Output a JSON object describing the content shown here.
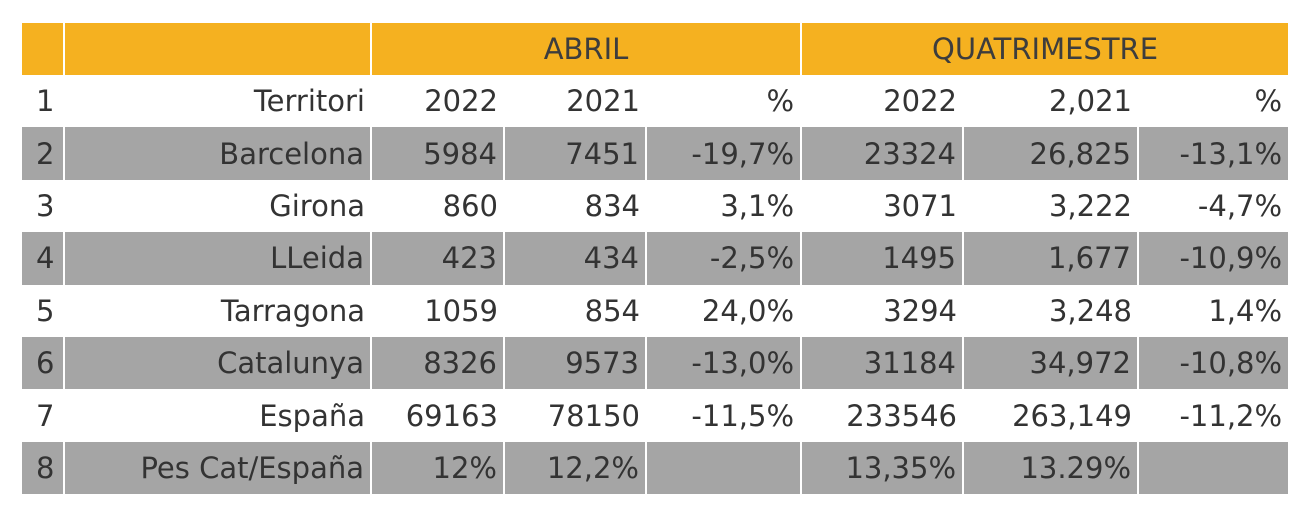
{
  "header": {
    "group_abril": "ABRIL",
    "group_quatrimestre": "QUATRIMESTRE"
  },
  "columns": [
    "Territori",
    "2022",
    "2021",
    "%",
    "2022",
    "2,021",
    "%"
  ],
  "rows": [
    {
      "index": "1",
      "cells": [
        "Territori",
        "2022",
        "2021",
        "%",
        "2022",
        "2,021",
        "%"
      ]
    },
    {
      "index": "2",
      "cells": [
        "Barcelona",
        "5984",
        "7451",
        "-19,7%",
        "23324",
        "26,825",
        "-13,1%"
      ]
    },
    {
      "index": "3",
      "cells": [
        "Girona",
        "860",
        "834",
        "3,1%",
        "3071",
        "3,222",
        "-4,7%"
      ]
    },
    {
      "index": "4",
      "cells": [
        "LLeida",
        "423",
        "434",
        "-2,5%",
        "1495",
        "1,677",
        "-10,9%"
      ]
    },
    {
      "index": "5",
      "cells": [
        "Tarragona",
        "1059",
        "854",
        "24,0%",
        "3294",
        "3,248",
        "1,4%"
      ]
    },
    {
      "index": "6",
      "cells": [
        "Catalunya",
        "8326",
        "9573",
        "-13,0%",
        "31184",
        "34,972",
        "-10,8%"
      ]
    },
    {
      "index": "7",
      "cells": [
        "España",
        "69163",
        "78150",
        "-11,5%",
        "233546",
        "263,149",
        "-11,2%"
      ]
    },
    {
      "index": "8",
      "cells": [
        "Pes Cat/España",
        "12%",
        "12,2%",
        "",
        "13,35%",
        "13.29%",
        ""
      ]
    }
  ],
  "colors": {
    "header_bg": "#f5b120",
    "stripe_bg": "#a5a5a5",
    "text": "#333333"
  }
}
